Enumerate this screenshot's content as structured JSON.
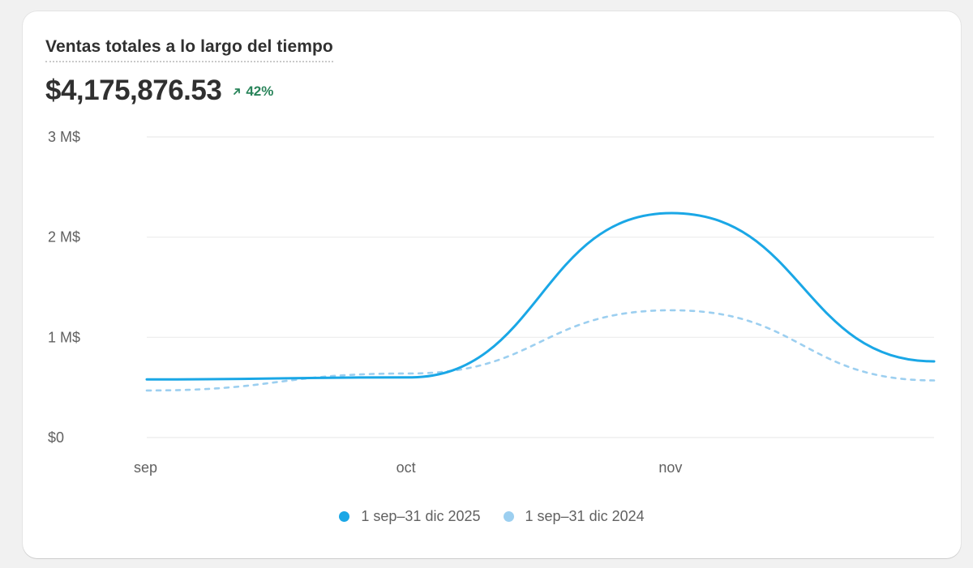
{
  "card": {
    "title": "Ventas totales a lo largo del tiempo",
    "total": "$4,175,876.53",
    "change": "42%",
    "change_color": "#29845a",
    "change_icon": "arrow-up-right-icon"
  },
  "chart_data": {
    "type": "line",
    "ylim": [
      0,
      3000000
    ],
    "yticks": [
      {
        "value": 0,
        "label": "$0"
      },
      {
        "value": 1000000,
        "label": "1 M$"
      },
      {
        "value": 2000000,
        "label": "2 M$"
      },
      {
        "value": 3000000,
        "label": "3 M$"
      }
    ],
    "xrange": [
      0,
      3
    ],
    "xticks": [
      {
        "value": 0,
        "label": "sep"
      },
      {
        "value": 1,
        "label": "oct"
      },
      {
        "value": 2,
        "label": "nov"
      }
    ],
    "grid": true,
    "legend_position": "bottom",
    "series": [
      {
        "name": "1 sep–31 dic 2025",
        "color": "#1aa7e6",
        "style": "solid",
        "x": [
          0,
          1,
          2,
          3
        ],
        "y": [
          580000,
          600000,
          2240000,
          760000
        ]
      },
      {
        "name": "1 sep–31 dic 2024",
        "color": "#9ccff0",
        "style": "dashed",
        "x": [
          0,
          1,
          2,
          3
        ],
        "y": [
          470000,
          640000,
          1270000,
          570000
        ]
      }
    ]
  }
}
